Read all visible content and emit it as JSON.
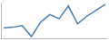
{
  "chart_data": {
    "type": "line",
    "categories": [
      null,
      null,
      null,
      null,
      null,
      null,
      null,
      null,
      null,
      null,
      null,
      null
    ],
    "values": [
      12,
      13,
      15,
      2,
      19,
      28,
      23,
      38,
      17,
      26,
      33,
      40
    ],
    "color": "#4a7eb5",
    "ylim": [
      0,
      42
    ],
    "grid": false,
    "tick_labels": false
  }
}
